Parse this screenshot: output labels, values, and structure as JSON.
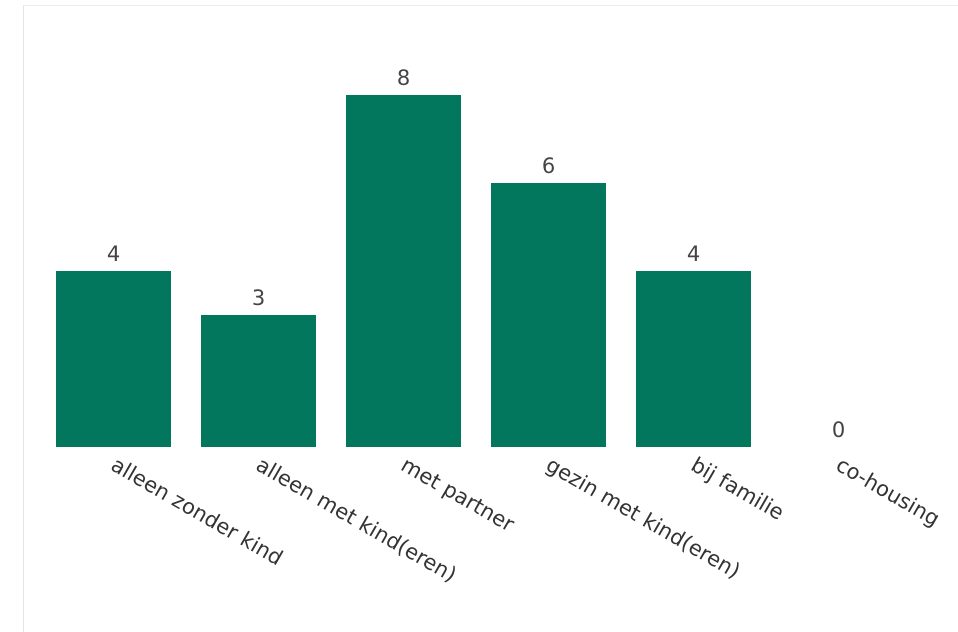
{
  "chart_data": {
    "type": "bar",
    "categories": [
      "alleen zonder kind",
      "alleen met kind(eren)",
      "met partner",
      "gezin met kind(eren)",
      "bij familie",
      "co-housing"
    ],
    "values": [
      4,
      3,
      8,
      6,
      4,
      0
    ],
    "data_labels": [
      "4",
      "3",
      "8",
      "6",
      "4",
      "0"
    ],
    "title": "",
    "xlabel": "",
    "ylabel": "",
    "ylim": [
      0,
      8
    ],
    "grid": false,
    "legend": "none",
    "bar_color": "#03775e"
  }
}
